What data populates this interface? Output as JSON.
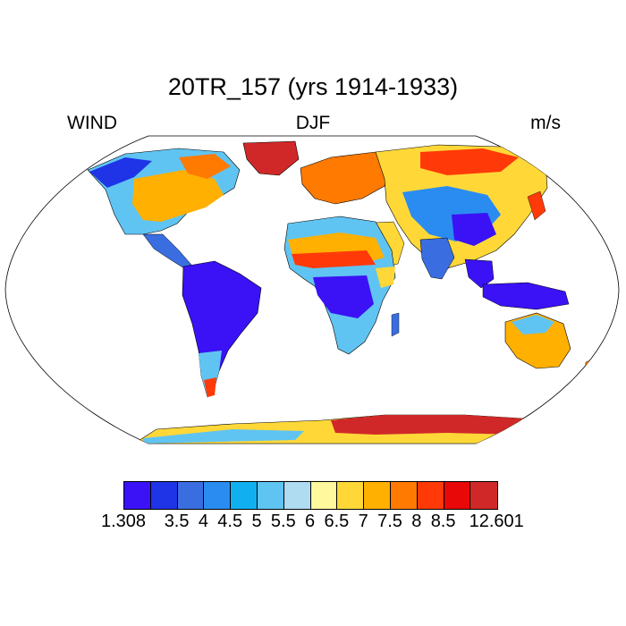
{
  "title": "20TR_157 (yrs 1914-1933)",
  "left_label": "WIND",
  "center_label": "DJF",
  "right_label": "m/s",
  "colorbar": {
    "colors": [
      "#3a12f5",
      "#1e34e6",
      "#3a6ee0",
      "#2a8cf0",
      "#10b0f0",
      "#60c4f2",
      "#b0dcf2",
      "#fff89c",
      "#ffd838",
      "#ffb000",
      "#ff7a00",
      "#ff3a08",
      "#e80808",
      "#d02828"
    ],
    "labels": [
      "1.308",
      "3.5",
      "4",
      "4.5",
      "5",
      "5.5",
      "6",
      "6.5",
      "7",
      "7.5",
      "8",
      "8.5",
      "12.601"
    ]
  },
  "map": {
    "projection": "Robinson",
    "variable": "surface wind speed, DJF mean",
    "ocean_color": "#ffffff",
    "coastline_color": "#000000"
  }
}
